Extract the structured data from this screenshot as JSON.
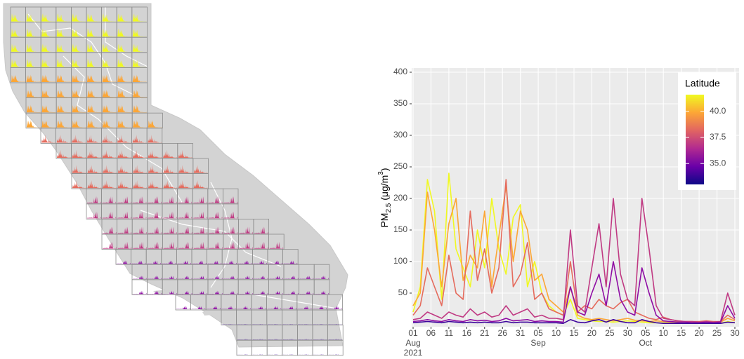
{
  "chart_data": {
    "type": "line",
    "x": [
      0,
      2,
      4,
      6,
      8,
      10,
      12,
      14,
      16,
      18,
      20,
      22,
      24,
      26,
      28,
      30,
      32,
      34,
      36,
      38,
      40,
      42,
      44,
      46,
      48,
      50,
      52,
      54,
      56,
      58,
      60,
      62,
      64,
      66,
      68,
      70,
      72,
      74,
      76,
      78,
      80,
      82,
      84,
      86,
      88,
      90
    ],
    "xlim": [
      0,
      90
    ],
    "xticks": [
      {
        "value": 0,
        "label": "01"
      },
      {
        "value": 5,
        "label": "06"
      },
      {
        "value": 10,
        "label": "11"
      },
      {
        "value": 15,
        "label": "16"
      },
      {
        "value": 20,
        "label": "21"
      },
      {
        "value": 25,
        "label": "26"
      },
      {
        "value": 30,
        "label": "31"
      },
      {
        "value": 35,
        "label": "05"
      },
      {
        "value": 40,
        "label": "10"
      },
      {
        "value": 45,
        "label": "15"
      },
      {
        "value": 50,
        "label": "20"
      },
      {
        "value": 55,
        "label": "25"
      },
      {
        "value": 60,
        "label": "30"
      },
      {
        "value": 65,
        "label": "05"
      },
      {
        "value": 70,
        "label": "10"
      },
      {
        "value": 75,
        "label": "15"
      },
      {
        "value": 80,
        "label": "20"
      },
      {
        "value": 85,
        "label": "25"
      },
      {
        "value": 90,
        "label": "30"
      }
    ],
    "x_period_labels": [
      {
        "value": 0,
        "label": "Aug"
      },
      {
        "value": 35,
        "label": "Sep"
      },
      {
        "value": 65,
        "label": "Oct"
      }
    ],
    "x_year_label": {
      "value": 0,
      "label": "2021"
    },
    "ylim": [
      0,
      400
    ],
    "yticks": [
      50,
      100,
      150,
      200,
      250,
      300,
      350,
      400
    ],
    "y_label": {
      "text": "PM",
      "sub": "2.5",
      "unit": " (μg/m",
      "sup": "3",
      "close": ")"
    },
    "grid": true,
    "colorbar": {
      "title": "Latitude",
      "clim": [
        33,
        41.6
      ],
      "ticks": [
        {
          "value": 35,
          "label": "35.0"
        },
        {
          "value": 37.5,
          "label": "37.5"
        },
        {
          "value": 40,
          "label": "40.0"
        }
      ],
      "colors": [
        "#0d0887",
        "#6a00a8",
        "#b12a90",
        "#e16462",
        "#fca636",
        "#f0f921"
      ]
    },
    "series": [
      {
        "color": "#f0f921",
        "values": [
          20,
          60,
          230,
          180,
          40,
          240,
          120,
          90,
          60,
          150,
          90,
          200,
          120,
          80,
          170,
          190,
          60,
          100,
          50,
          30,
          20,
          15,
          40,
          10,
          8,
          6,
          5,
          5,
          4,
          5,
          6,
          5,
          4,
          3,
          3,
          3,
          2,
          3,
          2,
          2,
          2,
          3,
          2,
          2,
          5,
          3
        ]
      },
      {
        "color": "#fca636",
        "values": [
          30,
          50,
          210,
          150,
          60,
          160,
          200,
          70,
          110,
          90,
          180,
          60,
          140,
          220,
          100,
          180,
          150,
          70,
          80,
          40,
          30,
          20,
          60,
          15,
          10,
          8,
          10,
          8,
          6,
          8,
          10,
          7,
          6,
          5,
          6,
          5,
          4,
          5,
          4,
          4,
          4,
          5,
          4,
          4,
          10,
          6
        ]
      },
      {
        "color": "#e56b5d",
        "values": [
          15,
          30,
          90,
          60,
          30,
          110,
          50,
          40,
          180,
          70,
          120,
          50,
          90,
          230,
          60,
          80,
          130,
          40,
          50,
          25,
          20,
          15,
          100,
          20,
          30,
          25,
          40,
          30,
          25,
          35,
          40,
          20,
          15,
          10,
          8,
          12,
          8,
          6,
          5,
          5,
          5,
          6,
          5,
          5,
          15,
          8
        ]
      },
      {
        "color": "#c03a83",
        "values": [
          8,
          10,
          20,
          15,
          10,
          20,
          15,
          12,
          25,
          15,
          20,
          12,
          15,
          30,
          15,
          20,
          25,
          12,
          15,
          10,
          10,
          8,
          150,
          30,
          20,
          90,
          160,
          60,
          200,
          80,
          40,
          30,
          200,
          120,
          30,
          10,
          8,
          6,
          5,
          5,
          4,
          5,
          4,
          5,
          50,
          15
        ]
      },
      {
        "color": "#8f0da4",
        "values": [
          5,
          6,
          8,
          6,
          5,
          8,
          6,
          5,
          8,
          6,
          7,
          5,
          6,
          10,
          6,
          7,
          8,
          5,
          6,
          5,
          5,
          4,
          60,
          20,
          15,
          50,
          80,
          30,
          100,
          40,
          20,
          15,
          90,
          50,
          15,
          6,
          5,
          4,
          4,
          3,
          3,
          4,
          3,
          4,
          30,
          10
        ]
      },
      {
        "color": "#3e049c",
        "values": [
          3,
          4,
          5,
          4,
          3,
          5,
          4,
          3,
          4,
          3,
          4,
          3,
          3,
          5,
          3,
          4,
          4,
          3,
          3,
          3,
          3,
          2,
          8,
          4,
          3,
          6,
          8,
          4,
          8,
          5,
          3,
          3,
          8,
          5,
          3,
          2,
          2,
          2,
          2,
          2,
          2,
          2,
          2,
          2,
          4,
          3
        ]
      }
    ]
  }
}
